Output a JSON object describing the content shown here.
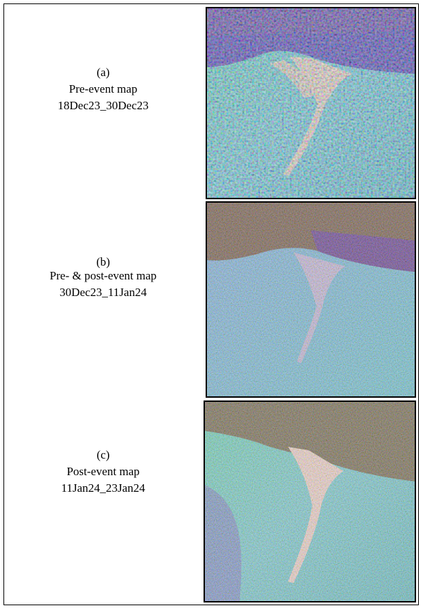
{
  "panels": [
    {
      "label": "(a)",
      "title": "Pre-event map",
      "dates": "18Dec23_30Dec23"
    },
    {
      "label": "(b)",
      "title": "Pre- & post-event map",
      "dates": "30Dec23_11Jan24"
    },
    {
      "label": "(c)",
      "title": "Post-event map",
      "dates": "11Jan24_23Jan24"
    }
  ]
}
